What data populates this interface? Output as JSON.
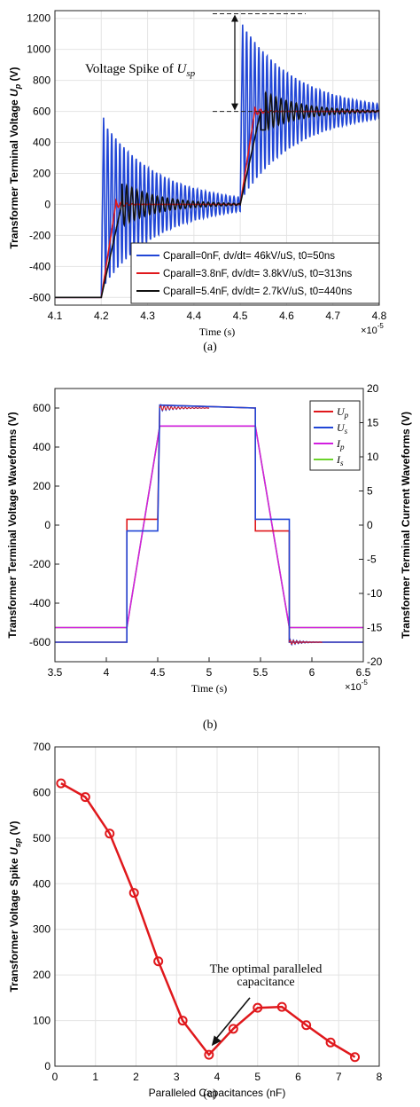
{
  "captions": [
    "(a)",
    "(b)",
    "(c)"
  ],
  "chart_data": [
    {
      "type": "line",
      "panel": "a",
      "title": "",
      "xlabel": "Time (s)",
      "ylabel": "Transformer Terminal Voltage U_p (V)",
      "x_multiplier_label": "×10",
      "x_multiplier_exp": "-5",
      "xlim": [
        4.1,
        4.8
      ],
      "ylim": [
        -650,
        1250
      ],
      "xticks": [
        "4.1",
        "4.2",
        "4.3",
        "4.4",
        "4.5",
        "4.6",
        "4.7",
        "4.8"
      ],
      "yticks": [
        "-600",
        "-400",
        "-200",
        "0",
        "200",
        "400",
        "600",
        "800",
        "1000",
        "1200"
      ],
      "grid": true,
      "legend_position": "bottom-right",
      "annotation": {
        "text": "Voltage Spike of ",
        "symbol": "U",
        "sub": "sp",
        "peak": 1230,
        "level": 600
      },
      "series": [
        {
          "name": "Cparall=0nF, dv/dt= 46kV/uS, t0=50ns",
          "color": "#2146d6",
          "amplitude": 560,
          "decay": 0.0025,
          "period": 0.0088,
          "rise_time": 0.005
        },
        {
          "name": "Cparall=3.8nF, dv/dt= 3.8kV/uS, t0=313ns",
          "color": "#e0181c",
          "amplitude": 25,
          "decay": 0.04,
          "period": 0.012,
          "rise_time": 0.0313
        },
        {
          "name": "Cparall=5.4nF, dv/dt= 2.7kV/uS, t0=440ns",
          "color": "#111111",
          "amplitude": 140,
          "decay": 0.06,
          "period": 0.011,
          "rise_time": 0.044
        }
      ],
      "steps": [
        {
          "t": 4.2,
          "from": -600,
          "to": 0
        },
        {
          "t": 4.5,
          "from": 0,
          "to": 600
        }
      ]
    },
    {
      "type": "line",
      "panel": "b",
      "title": "",
      "xlabel": "Time (s)",
      "ylabel": "Transformer Terminal Voltage Waveforms (V)",
      "y2label": "Transformer Terminal Current Waveforms (V)",
      "x_multiplier_label": "×10",
      "x_multiplier_exp": "-5",
      "xlim": [
        3.5,
        6.5
      ],
      "ylim": [
        -700,
        700
      ],
      "y2lim": [
        -20,
        20
      ],
      "xticks": [
        "3.5",
        "4",
        "4.5",
        "5",
        "5.5",
        "6",
        "6.5"
      ],
      "yticks": [
        "-600",
        "-400",
        "-200",
        "0",
        "200",
        "400",
        "600"
      ],
      "y2ticks": [
        "-20",
        "-15",
        "-10",
        "-5",
        "0",
        "5",
        "10",
        "15",
        "20"
      ],
      "grid": false,
      "legend_position": "top-right",
      "series": [
        {
          "name": "U",
          "sub": "p",
          "color": "#e0181c",
          "axis": "left",
          "points": [
            [
              3.5,
              -600
            ],
            [
              4.2,
              -600
            ],
            [
              4.2,
              30
            ],
            [
              4.5,
              30
            ],
            [
              4.52,
              615
            ],
            [
              5.45,
              600
            ],
            [
              5.45,
              -30
            ],
            [
              5.78,
              -30
            ],
            [
              5.78,
              -600
            ],
            [
              6.5,
              -600
            ]
          ]
        },
        {
          "name": "U",
          "sub": "s",
          "color": "#2146d6",
          "axis": "left",
          "points": [
            [
              3.5,
              -600
            ],
            [
              4.2,
              -600
            ],
            [
              4.2,
              -30
            ],
            [
              4.5,
              -30
            ],
            [
              4.52,
              615
            ],
            [
              5.45,
              600
            ],
            [
              5.45,
              30
            ],
            [
              5.78,
              30
            ],
            [
              5.78,
              -600
            ],
            [
              6.5,
              -600
            ]
          ]
        },
        {
          "name": "I",
          "sub": "p",
          "color": "#d21ee0",
          "axis": "right",
          "points": [
            [
              3.5,
              -15
            ],
            [
              4.2,
              -15
            ],
            [
              4.52,
              14.5
            ],
            [
              5.45,
              14.5
            ],
            [
              5.78,
              -15
            ],
            [
              6.5,
              -15
            ]
          ]
        },
        {
          "name": "I",
          "sub": "s",
          "color": "#6bd32b",
          "axis": "right",
          "points": [
            [
              3.5,
              -15
            ],
            [
              4.2,
              -15
            ],
            [
              4.52,
              14.5
            ],
            [
              5.45,
              14.5
            ],
            [
              5.78,
              -15
            ],
            [
              6.5,
              -15
            ]
          ]
        }
      ]
    },
    {
      "type": "line",
      "panel": "c",
      "title": "",
      "xlabel": "Paralleled Capacitances (nF)",
      "ylabel": "Transformer Voltage Spike U_sp (V)",
      "xlim": [
        0,
        8
      ],
      "ylim": [
        0,
        700
      ],
      "xticks": [
        "0",
        "1",
        "2",
        "3",
        "4",
        "5",
        "6",
        "7",
        "8"
      ],
      "yticks": [
        "0",
        "100",
        "200",
        "300",
        "400",
        "500",
        "600",
        "700"
      ],
      "grid": true,
      "color": "#e0181c",
      "annotation": {
        "lines": [
          "The optimal paralleled",
          "capacitance"
        ],
        "x": 3.8,
        "y": 25
      },
      "x": [
        0.15,
        0.75,
        1.35,
        1.95,
        2.55,
        3.15,
        3.8,
        4.4,
        5.0,
        5.6,
        6.2,
        6.8,
        7.4
      ],
      "values": [
        620,
        590,
        510,
        380,
        230,
        100,
        25,
        82,
        128,
        130,
        90,
        52,
        20
      ]
    }
  ]
}
